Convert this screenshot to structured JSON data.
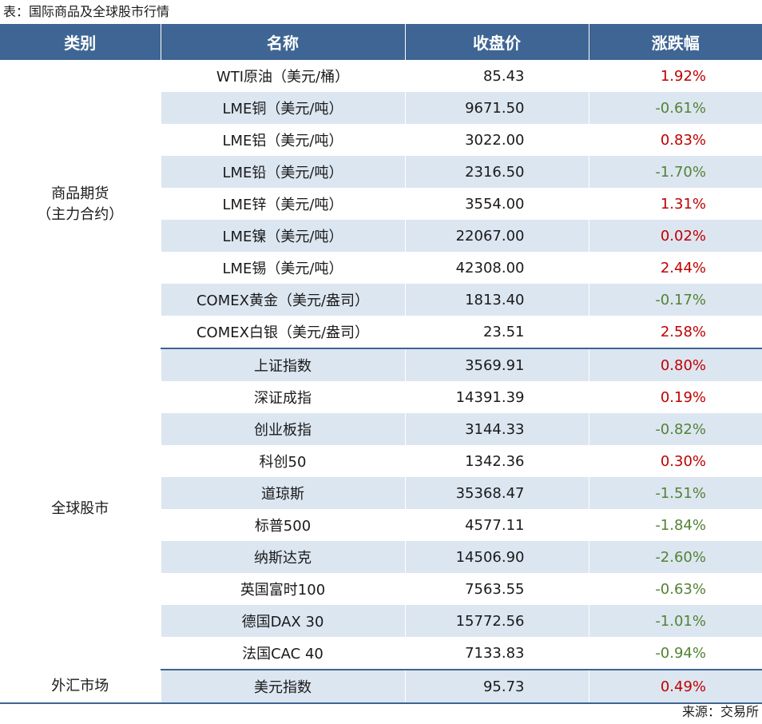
{
  "caption": "表：国际商品及全球股市行情",
  "headers": [
    "类别",
    "名称",
    "收盘价",
    "涨跌幅"
  ],
  "groups": [
    {
      "category_lines": [
        "商品期货",
        "（主力合约）"
      ],
      "rows": [
        {
          "name": "WTI原油（美元/桶）",
          "close": "85.43",
          "change": "1.92%"
        },
        {
          "name": "LME铜（美元/吨）",
          "close": "9671.50",
          "change": "-0.61%"
        },
        {
          "name": "LME铝（美元/吨）",
          "close": "3022.00",
          "change": "0.83%"
        },
        {
          "name": "LME铅（美元/吨）",
          "close": "2316.50",
          "change": "-1.70%"
        },
        {
          "name": "LME锌（美元/吨）",
          "close": "3554.00",
          "change": "1.31%"
        },
        {
          "name": "LME镍（美元/吨）",
          "close": "22067.00",
          "change": "0.02%"
        },
        {
          "name": "LME锡（美元/吨）",
          "close": "42308.00",
          "change": "2.44%"
        },
        {
          "name": "COMEX黄金（美元/盎司）",
          "close": "1813.40",
          "change": "-0.17%"
        },
        {
          "name": "COMEX白银（美元/盎司）",
          "close": "23.51",
          "change": "2.58%"
        }
      ]
    },
    {
      "category_lines": [
        "全球股市"
      ],
      "rows": [
        {
          "name": "上证指数",
          "close": "3569.91",
          "change": "0.80%"
        },
        {
          "name": "深证成指",
          "close": "14391.39",
          "change": "0.19%"
        },
        {
          "name": "创业板指",
          "close": "3144.33",
          "change": "-0.82%"
        },
        {
          "name": "科创50",
          "close": "1342.36",
          "change": "0.30%"
        },
        {
          "name": "道琼斯",
          "close": "35368.47",
          "change": "-1.51%"
        },
        {
          "name": "标普500",
          "close": "4577.11",
          "change": "-1.84%"
        },
        {
          "name": "纳斯达克",
          "close": "14506.90",
          "change": "-2.60%"
        },
        {
          "name": "英国富时100",
          "close": "7563.55",
          "change": "-0.63%"
        },
        {
          "name": "德国DAX 30",
          "close": "15772.56",
          "change": "-1.01%"
        },
        {
          "name": "法国CAC 40",
          "close": "7133.83",
          "change": "-0.94%"
        }
      ]
    },
    {
      "category_lines": [
        "外汇市场"
      ],
      "rows": [
        {
          "name": "美元指数",
          "close": "95.73",
          "change": "0.49%"
        }
      ]
    }
  ],
  "colors": {
    "header_bg": "#3e6593",
    "stripe": "#dce6f1",
    "positive": "#c00000",
    "negative": "#548235"
  },
  "source": "来源：交易所"
}
